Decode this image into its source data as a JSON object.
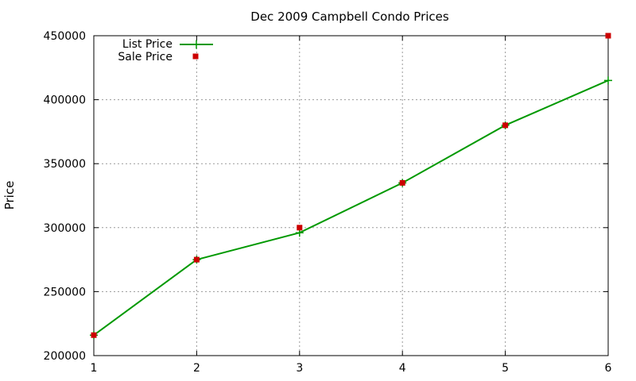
{
  "chart_data": {
    "type": "line",
    "title": "Dec 2009 Campbell Condo Prices",
    "xlabel": "",
    "ylabel": "Price",
    "x": [
      1,
      2,
      3,
      4,
      5,
      6
    ],
    "xlim": [
      1,
      6
    ],
    "ylim": [
      200000,
      450000
    ],
    "x_ticks": [
      "1",
      "2",
      "3",
      "4",
      "5",
      "6"
    ],
    "y_ticks": [
      "200000",
      "250000",
      "300000",
      "350000",
      "400000",
      "450000"
    ],
    "grid": true,
    "legend_position": "top-left",
    "series": [
      {
        "name": "List Price",
        "style": "line with plus markers",
        "color": "#009900",
        "values": [
          216000,
          275000,
          296000,
          335000,
          380000,
          415000
        ]
      },
      {
        "name": "Sale Price",
        "style": "square markers",
        "color": "#cc0000",
        "values": [
          216000,
          275000,
          300000,
          335000,
          380000,
          450000
        ]
      }
    ]
  }
}
